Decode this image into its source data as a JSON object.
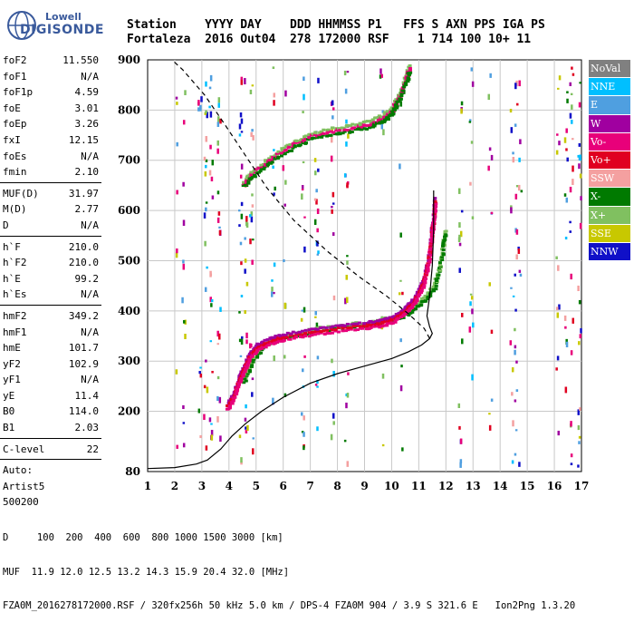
{
  "logo": {
    "line1": "Lowell",
    "line2": "DIGISONDE"
  },
  "header": {
    "labels": "Station    YYYY DAY    DDD HHMMSS P1   FFS S AXN PPS IGA PS",
    "values": "Fortaleza  2016 Out04  278 172000 RSF    1 714 100 10+ 11"
  },
  "params": [
    {
      "k": "foF2",
      "v": "11.550"
    },
    {
      "k": "foF1",
      "v": "N/A"
    },
    {
      "k": "foF1p",
      "v": "4.59"
    },
    {
      "k": "foE",
      "v": "3.01"
    },
    {
      "k": "foEp",
      "v": "3.26"
    },
    {
      "k": "fxI",
      "v": "12.15"
    },
    {
      "k": "foEs",
      "v": "N/A"
    },
    {
      "k": "fmin",
      "v": "2.10"
    },
    {
      "k": "MUF(D)",
      "v": "31.97"
    },
    {
      "k": "M(D)",
      "v": "2.77"
    },
    {
      "k": "D",
      "v": "N/A"
    },
    {
      "k": "h`F",
      "v": "210.0"
    },
    {
      "k": "h`F2",
      "v": "210.0"
    },
    {
      "k": "h`E",
      "v": "99.2"
    },
    {
      "k": "h`Es",
      "v": "N/A"
    },
    {
      "k": "hmF2",
      "v": "349.2"
    },
    {
      "k": "hmF1",
      "v": "N/A"
    },
    {
      "k": "hmE",
      "v": "101.7"
    },
    {
      "k": "yF2",
      "v": "102.9"
    },
    {
      "k": "yF1",
      "v": "N/A"
    },
    {
      "k": "yE",
      "v": "11.4"
    },
    {
      "k": "B0",
      "v": "114.0"
    },
    {
      "k": "B1",
      "v": "2.03"
    },
    {
      "k": "C-level",
      "v": "22"
    },
    {
      "k": "Auto:",
      "v": ""
    },
    {
      "k": "Artist5",
      "v": ""
    },
    {
      "k": "500200",
      "v": ""
    }
  ],
  "legend": [
    {
      "label": "NoVal",
      "color": "#808080"
    },
    {
      "label": "NNE",
      "color": "#00bfff"
    },
    {
      "label": "E",
      "color": "#4f9fe0"
    },
    {
      "label": "W",
      "color": "#a000a0"
    },
    {
      "label": "Vo-",
      "color": "#e8007a"
    },
    {
      "label": "Vo+",
      "color": "#e00020"
    },
    {
      "label": "SSW",
      "color": "#f4a0a0"
    },
    {
      "label": "X-",
      "color": "#007a00"
    },
    {
      "label": "X+",
      "color": "#80c060"
    },
    {
      "label": "SSE",
      "color": "#c8c800"
    },
    {
      "label": "NNW",
      "color": "#1010c8"
    }
  ],
  "footer": {
    "line1": "D     100  200  400  600  800 1000 1500 3000 [km]",
    "line2": "MUF  11.9 12.0 12.5 13.2 14.3 15.9 20.4 32.0 [MHz]",
    "line3": "FZA0M_2016278172000.RSF / 320fx256h 50 kHz 5.0 km / DPS-4 FZA0M 904 / 3.9 S 321.6 E   Ion2Png 1.3.20"
  },
  "chart_data": {
    "type": "scatter",
    "xlim": [
      1,
      17
    ],
    "ylim": [
      80,
      900
    ],
    "x_ticks": [
      1,
      2,
      3,
      4,
      5,
      6,
      7,
      8,
      9,
      10,
      11,
      12,
      13,
      14,
      15,
      16,
      17
    ],
    "y_ticks": [
      80,
      200,
      300,
      400,
      500,
      600,
      700,
      800,
      900
    ],
    "grid": true,
    "legend_position": "right",
    "profile_solid": [
      [
        1.0,
        86
      ],
      [
        2.0,
        88
      ],
      [
        2.8,
        95
      ],
      [
        3.2,
        103
      ],
      [
        3.7,
        125
      ],
      [
        4.1,
        150
      ],
      [
        4.6,
        175
      ],
      [
        5.2,
        200
      ],
      [
        6.0,
        228
      ],
      [
        7.0,
        256
      ],
      [
        8.0,
        275
      ],
      [
        9.0,
        290
      ],
      [
        10.0,
        305
      ],
      [
        10.6,
        318
      ],
      [
        11.1,
        332
      ],
      [
        11.4,
        345
      ],
      [
        11.5,
        355
      ],
      [
        11.4,
        368
      ],
      [
        11.3,
        390
      ],
      [
        11.4,
        430
      ],
      [
        11.5,
        490
      ],
      [
        11.55,
        560
      ],
      [
        11.55,
        640
      ]
    ],
    "profile_dashed": [
      [
        11.4,
        345
      ],
      [
        11.2,
        365
      ],
      [
        10.6,
        395
      ],
      [
        9.8,
        430
      ],
      [
        8.8,
        468
      ],
      [
        7.6,
        520
      ],
      [
        6.4,
        580
      ],
      [
        5.4,
        645
      ],
      [
        4.6,
        710
      ],
      [
        3.8,
        775
      ],
      [
        3.1,
        830
      ],
      [
        2.3,
        880
      ],
      [
        1.9,
        900
      ]
    ],
    "o_trace": [
      [
        3.9,
        207
      ],
      [
        4.1,
        225
      ],
      [
        4.3,
        255
      ],
      [
        4.5,
        280
      ],
      [
        4.7,
        305
      ],
      [
        5.0,
        325
      ],
      [
        5.5,
        338
      ],
      [
        6.0,
        345
      ],
      [
        7.0,
        355
      ],
      [
        8.0,
        362
      ],
      [
        9.0,
        368
      ],
      [
        9.6,
        373
      ],
      [
        10.0,
        380
      ],
      [
        10.4,
        395
      ],
      [
        10.7,
        410
      ],
      [
        10.9,
        428
      ],
      [
        11.1,
        450
      ],
      [
        11.3,
        490
      ],
      [
        11.4,
        540
      ],
      [
        11.5,
        580
      ],
      [
        11.55,
        620
      ]
    ],
    "x_trace": [
      [
        4.5,
        260
      ],
      [
        4.8,
        300
      ],
      [
        5.2,
        330
      ],
      [
        5.8,
        345
      ],
      [
        6.8,
        358
      ],
      [
        8.0,
        368
      ],
      [
        9.2,
        375
      ],
      [
        10.0,
        384
      ],
      [
        10.5,
        395
      ],
      [
        10.9,
        410
      ],
      [
        11.2,
        425
      ],
      [
        11.5,
        445
      ],
      [
        11.7,
        480
      ],
      [
        11.85,
        530
      ],
      [
        11.9,
        560
      ]
    ],
    "upper_trace": [
      [
        4.5,
        650
      ],
      [
        4.8,
        670
      ],
      [
        5.3,
        690
      ],
      [
        5.8,
        710
      ],
      [
        6.4,
        730
      ],
      [
        7.0,
        745
      ],
      [
        7.8,
        755
      ],
      [
        8.6,
        762
      ],
      [
        9.2,
        770
      ],
      [
        9.6,
        780
      ],
      [
        9.9,
        792
      ],
      [
        10.1,
        810
      ],
      [
        10.3,
        830
      ],
      [
        10.5,
        860
      ],
      [
        10.6,
        880
      ]
    ]
  }
}
